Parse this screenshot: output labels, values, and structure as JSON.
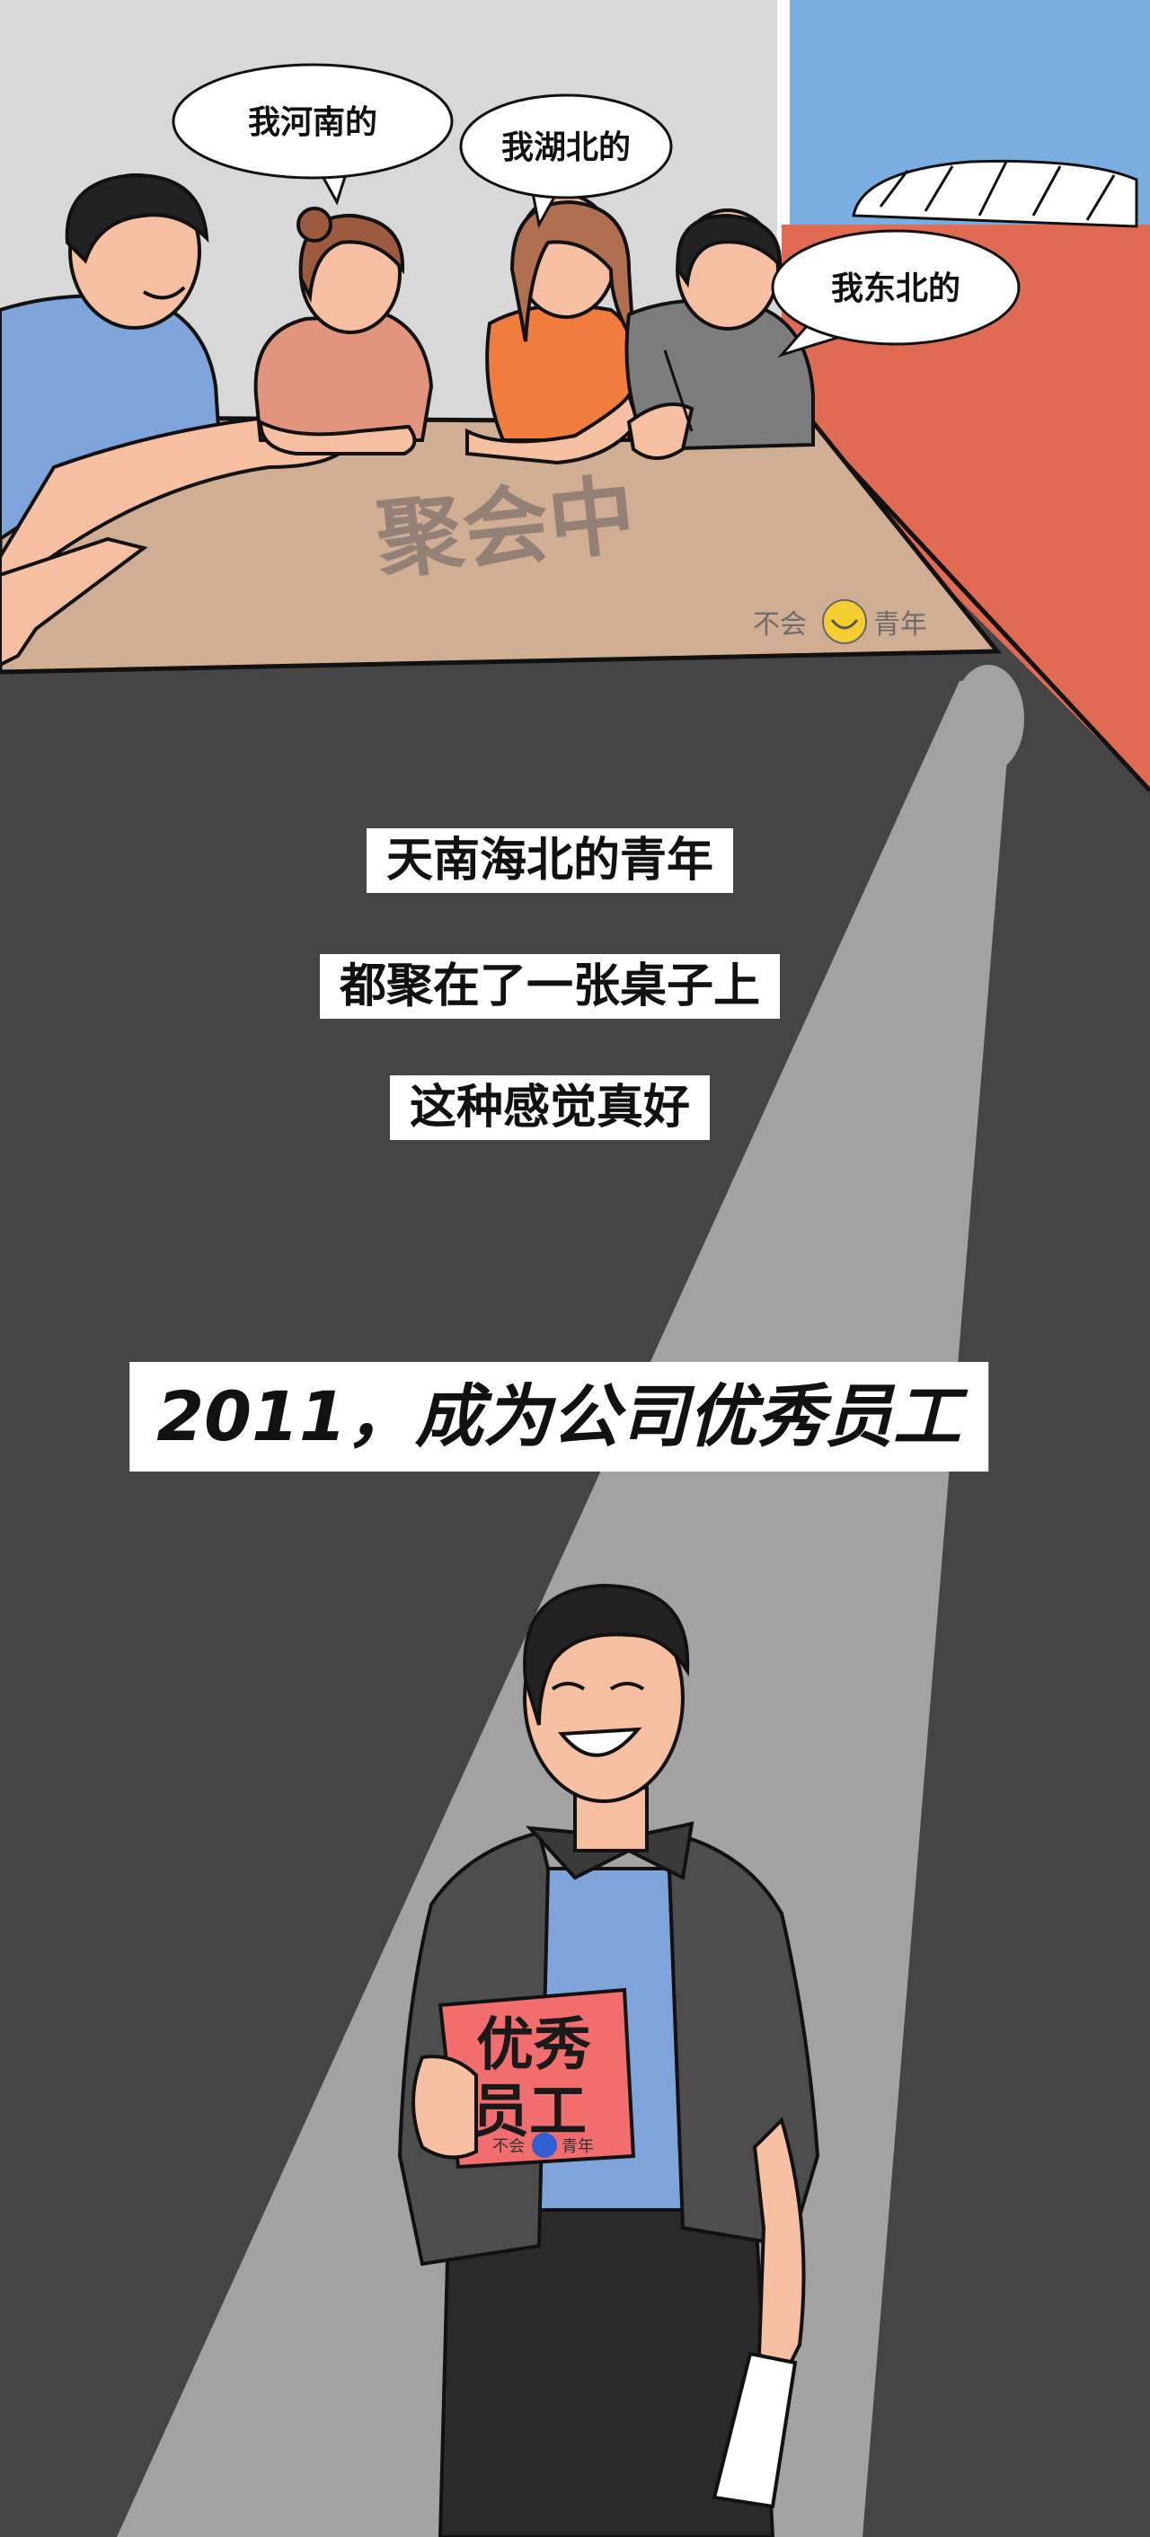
{
  "speech_bubbles": [
    {
      "text": "我河南的"
    },
    {
      "text": "我湖北的"
    },
    {
      "text": "我东北的"
    }
  ],
  "table_sign": "聚会中",
  "watermark": {
    "left": "不会",
    "right": "青年"
  },
  "captions": [
    "天南海北的青年",
    "都聚在了一张桌子上",
    "这种感觉真好"
  ],
  "headline": "2011，成为公司优秀员工",
  "award_card": {
    "line1": "优秀",
    "line2": "员工",
    "stamp_left": "不会",
    "stamp_right": "青年"
  },
  "colors": {
    "background": "#454545",
    "wall_left": "#d8d8d8",
    "window_sky": "#7aaee0",
    "window_roof": "#e06a52",
    "table": "#cfae93",
    "spotlight": "#a2a2a2",
    "award_card": "#f26d6d",
    "caption_bg": "#ffffff"
  }
}
